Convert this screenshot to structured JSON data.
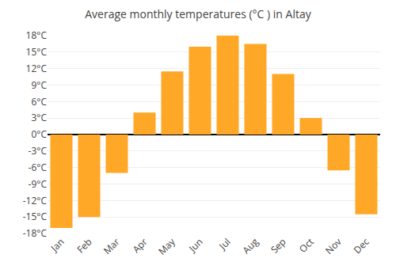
{
  "chart_data": {
    "type": "bar",
    "title": "Average monthly temperatures (°C ) in Altay",
    "categories": [
      "Jan",
      "Feb",
      "Mar",
      "Apr",
      "May",
      "Jun",
      "Jul",
      "Aug",
      "Sep",
      "Oct",
      "Nov",
      "Dec"
    ],
    "values": [
      -17,
      -15,
      -7,
      4,
      11.5,
      16,
      18,
      16.5,
      11,
      3,
      -6.5,
      -14.5
    ],
    "color": "#FFA726",
    "ylim": [
      -18,
      18
    ],
    "yticks": [
      {
        "value": -18,
        "label": "-18°C"
      },
      {
        "value": -15,
        "label": "-15°C"
      },
      {
        "value": -12,
        "label": "-12°C"
      },
      {
        "value": -9,
        "label": "-9°C"
      },
      {
        "value": -6,
        "label": "-6°C"
      },
      {
        "value": -3,
        "label": "-3°C"
      },
      {
        "value": 0,
        "label": "0°C"
      },
      {
        "value": 3,
        "label": "3°C"
      },
      {
        "value": 6,
        "label": "6°C"
      },
      {
        "value": 9,
        "label": "9°C"
      },
      {
        "value": 12,
        "label": "12°C"
      },
      {
        "value": 15,
        "label": "15°C"
      },
      {
        "value": 18,
        "label": "18°C"
      }
    ],
    "grid": true
  }
}
